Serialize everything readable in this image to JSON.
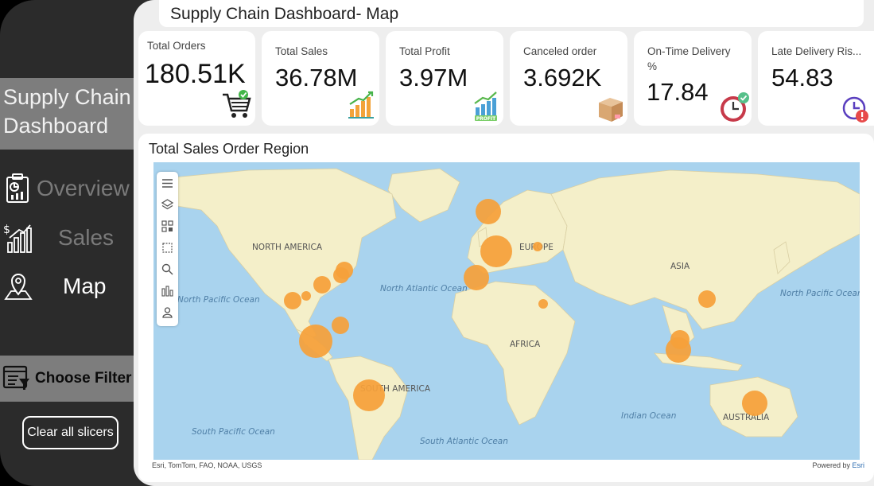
{
  "sidebar": {
    "brand": "Supply Chain Dashboard",
    "nav": [
      {
        "label": "Overview",
        "icon": "report-icon"
      },
      {
        "label": "Sales",
        "icon": "sales-growth-icon"
      },
      {
        "label": "Map",
        "icon": "map-pin-icon"
      }
    ],
    "filter_label": "Choose Filter",
    "clear_label": "Clear all slicers"
  },
  "header": {
    "title": "Supply Chain Dashboard- Map"
  },
  "kpis": [
    {
      "label": "Total Orders",
      "value": "180.51K",
      "icon": "shopping-cart-icon"
    },
    {
      "label": "Total Sales",
      "value": "36.78M",
      "icon": "bar-chart-icon"
    },
    {
      "label": "Total Profit",
      "value": "3.97M",
      "icon": "profit-chart-icon"
    },
    {
      "label": "Canceled order",
      "value": "3.692K",
      "icon": "box-icon"
    },
    {
      "label": "On-Time Delivery %",
      "value": "17.84",
      "icon": "clock-check-icon"
    },
    {
      "label": "Late Delivery Ris...",
      "value": "54.83",
      "icon": "clock-alert-icon"
    }
  ],
  "map": {
    "title": "Total Sales Order Region",
    "attribution": "Esri, TomTom, FAO, NOAA, USGS",
    "powered_by": "Powered by",
    "powered_by_brand": "Esri",
    "labels": {
      "north_america": "NORTH AMERICA",
      "europe": "EUROPE",
      "asia": "ASIA",
      "africa": "AFRICA",
      "south_america": "SOUTH AMERICA",
      "australia": "AUSTRALIA",
      "north_pacific_w": "North Pacific Ocean",
      "north_pacific_e": "North Pacific Ocean",
      "north_atlantic": "North Atlantic Ocean",
      "south_pacific": "South Pacific Ocean",
      "south_atlantic": "South Atlantic Ocean",
      "indian": "Indian Ocean"
    },
    "bubble_color": "#f5a03a"
  },
  "colors": {
    "sidebar": "#2b2b2b",
    "panel": "#7d7d7d",
    "ocean": "#a9d3ee",
    "land": "#f4efc9"
  }
}
